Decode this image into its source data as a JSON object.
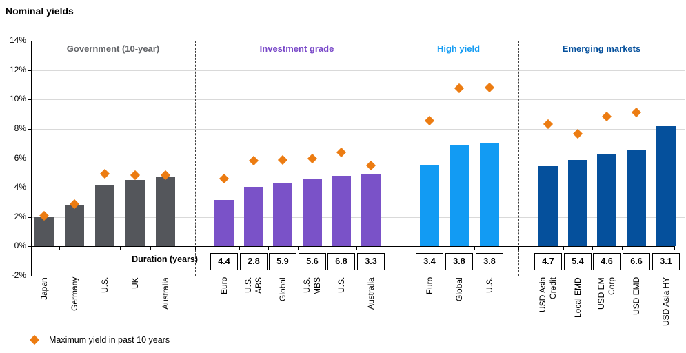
{
  "chart_data": {
    "type": "bar",
    "title": "Nominal yields",
    "unit": "%",
    "y_axis": {
      "ticks": [
        "14%",
        "12%",
        "10%",
        "8%",
        "6%",
        "4%",
        "2%",
        "0%",
        "-2%"
      ],
      "ylim": [
        -2,
        14
      ],
      "grid_step_pct": 2
    },
    "duration_axis_label": "Duration (years)",
    "legend": {
      "label": "Maximum yield in past 10 years",
      "marker": "orange-diamond",
      "marker_color": "#EC7C12"
    },
    "sections": [
      {
        "title": "Government (10-year)",
        "bar_color": "#54565B",
        "title_color": "#636569",
        "bars": [
          {
            "label": "Japan",
            "yield_pct": 2.0,
            "max_10y_pct": 2.1,
            "duration_years": null
          },
          {
            "label": "Germany",
            "yield_pct": 2.8,
            "max_10y_pct": 2.9,
            "duration_years": null
          },
          {
            "label": "U.S.",
            "yield_pct": 4.15,
            "max_10y_pct": 4.95,
            "duration_years": null
          },
          {
            "label": "UK",
            "yield_pct": 4.5,
            "max_10y_pct": 4.85,
            "duration_years": null
          },
          {
            "label": "Australia",
            "yield_pct": 4.75,
            "max_10y_pct": 4.85,
            "duration_years": null
          }
        ]
      },
      {
        "title": "Investment grade",
        "bar_color": "#7A52C8",
        "title_color": "#7847C8",
        "bars": [
          {
            "label": "Euro",
            "yield_pct": 3.15,
            "max_10y_pct": 4.6,
            "duration_years": "4.4"
          },
          {
            "label": "U.S.\nABS",
            "yield_pct": 4.05,
            "max_10y_pct": 5.85,
            "duration_years": "2.8"
          },
          {
            "label": "Global",
            "yield_pct": 4.3,
            "max_10y_pct": 5.9,
            "duration_years": "5.9"
          },
          {
            "label": "U.S.\nMBS",
            "yield_pct": 4.6,
            "max_10y_pct": 6.0,
            "duration_years": "5.6"
          },
          {
            "label": "U.S.",
            "yield_pct": 4.8,
            "max_10y_pct": 6.4,
            "duration_years": "6.8"
          },
          {
            "label": "Australia",
            "yield_pct": 4.95,
            "max_10y_pct": 5.5,
            "duration_years": "3.3"
          }
        ]
      },
      {
        "title": "High yield",
        "bar_color": "#129BF3",
        "title_color": "#129BF3",
        "bars": [
          {
            "label": "Euro",
            "yield_pct": 5.5,
            "max_10y_pct": 8.55,
            "duration_years": "3.4"
          },
          {
            "label": "Global",
            "yield_pct": 6.85,
            "max_10y_pct": 10.75,
            "duration_years": "3.8"
          },
          {
            "label": "U.S.",
            "yield_pct": 7.05,
            "max_10y_pct": 10.8,
            "duration_years": "3.8"
          }
        ]
      },
      {
        "title": "Emerging markets",
        "bar_color": "#05509C",
        "title_color": "#05509C",
        "bars": [
          {
            "label": "USD Asia\nCredit",
            "yield_pct": 5.45,
            "max_10y_pct": 8.3,
            "duration_years": "4.7"
          },
          {
            "label": "Local EMD",
            "yield_pct": 5.9,
            "max_10y_pct": 7.65,
            "duration_years": "5.4"
          },
          {
            "label": "USD EM\nCorp",
            "yield_pct": 6.3,
            "max_10y_pct": 8.85,
            "duration_years": "4.6"
          },
          {
            "label": "USD EMD",
            "yield_pct": 6.6,
            "max_10y_pct": 9.1,
            "duration_years": "6.6"
          },
          {
            "label": "USD Asia HY",
            "yield_pct": 8.2,
            "max_10y_pct": null,
            "duration_years": "3.1"
          }
        ]
      }
    ]
  }
}
